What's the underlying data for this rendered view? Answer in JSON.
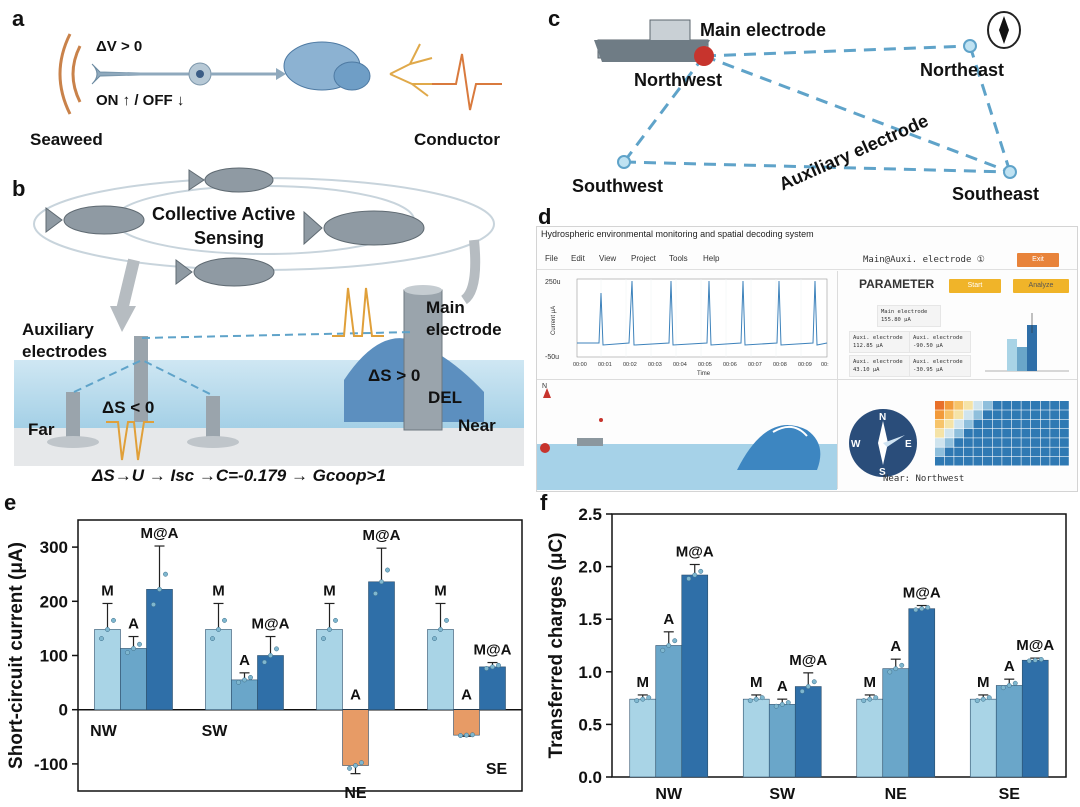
{
  "panels": {
    "a": {
      "letter": "a",
      "dv": "ΔV > 0",
      "onoff": "ON ↑ / OFF ↓",
      "left_label": "Seaweed",
      "right_label": "Conductor"
    },
    "b": {
      "letter": "b",
      "title1": "Collective Active",
      "title2": "Sensing",
      "aux1": "Auxiliary",
      "aux2": "electrodes",
      "main1": "Main",
      "main2": "electrode",
      "ds_pos": "ΔS > 0",
      "ds_neg": "ΔS < 0",
      "del": "DEL",
      "far": "Far",
      "near": "Near",
      "equation": "ΔS→U → Isc →C=-0.179 → Gcoop>1"
    },
    "c": {
      "letter": "c",
      "main": "Main electrode",
      "nw": "Northwest",
      "ne": "Northeast",
      "sw": "Southwest",
      "se": "Southeast",
      "aux": "Auxiliary electrode"
    },
    "d": {
      "letter": "d",
      "app_title": "Hydrospheric environmental monitoring and spatial decoding system",
      "menu": [
        "File",
        "Edit",
        "View",
        "Project",
        "Tools",
        "Help"
      ],
      "elec_title": "Main@Auxi. electrode ①",
      "exit": "Exit",
      "param": "PARAMETER",
      "start": "Start",
      "analyze": "Analyze",
      "y_top": "250u",
      "y_bottom": "-50u",
      "y_label": "Current μA",
      "x_label": "Time",
      "x_ticks": [
        "00:00",
        "00:01",
        "00:02",
        "00:03",
        "00:04",
        "00:05",
        "00:06",
        "00:07",
        "00:08",
        "00:09",
        "00:"
      ],
      "main_name": "Main electrode",
      "main_val": "155.80 μA",
      "aux_name": "Auxi. electrode",
      "aux_vals": [
        "112.85 μA",
        "-90.50 μA",
        "43.10 μA",
        "-30.95 μA"
      ],
      "compass": {
        "n": "N",
        "e": "E",
        "s": "S",
        "w": "W"
      },
      "north_mark": "N",
      "near": "Near: Northwest",
      "colors": {
        "exit": "#e8833a",
        "start": "#f0b429",
        "accent": "#2f79b3"
      }
    },
    "e": {
      "letter": "e"
    },
    "f": {
      "letter": "f"
    }
  },
  "chart_data": [
    {
      "type": "bar",
      "panel": "e",
      "ylabel": "Short-circuit current (μA)",
      "categories": [
        "NW",
        "SW",
        "NE",
        "SE"
      ],
      "yticks": [
        -100,
        0,
        100,
        200,
        300
      ],
      "ylim": [
        -150,
        350
      ],
      "series": [
        {
          "name": "M",
          "color": "#a9d4e6",
          "values": [
            148,
            148,
            148,
            148
          ],
          "errors": [
            48,
            48,
            48,
            48
          ],
          "labels": [
            "M",
            "M",
            "M",
            "M"
          ]
        },
        {
          "name": "A",
          "color": "#6aa6c9",
          "values": [
            113,
            55,
            -103,
            -47
          ],
          "errors": [
            22,
            13,
            15,
            2
          ],
          "labels": [
            "A",
            "A",
            "A",
            "A"
          ],
          "neg_color": "#e79b66"
        },
        {
          "name": "M@A",
          "color": "#2f6fa8",
          "values": [
            222,
            100,
            236,
            79
          ],
          "errors": [
            80,
            35,
            62,
            8
          ],
          "labels": [
            "M@A",
            "M@A",
            "M@A",
            "M@A"
          ],
          "neg_color": "#e07b3f"
        }
      ],
      "neg_values_secondary": [
        0,
        0,
        -112,
        -47
      ]
    },
    {
      "type": "bar",
      "panel": "f",
      "ylabel": "Transferred charges (μC)",
      "categories": [
        "NW",
        "SW",
        "NE",
        "SE"
      ],
      "yticks": [
        0.0,
        0.5,
        1.0,
        1.5,
        2.0,
        2.5
      ],
      "ylim": [
        0,
        2.5
      ],
      "series": [
        {
          "name": "M",
          "color": "#a9d4e6",
          "values": [
            0.74,
            0.74,
            0.74,
            0.74
          ],
          "errors": [
            0.04,
            0.04,
            0.04,
            0.04
          ],
          "labels": [
            "M",
            "M",
            "M",
            "M"
          ]
        },
        {
          "name": "A",
          "color": "#6aa6c9",
          "values": [
            1.25,
            0.69,
            1.03,
            0.87
          ],
          "errors": [
            0.13,
            0.05,
            0.09,
            0.06
          ],
          "labels": [
            "A",
            "A",
            "A",
            "A"
          ]
        },
        {
          "name": "M@A",
          "color": "#2f6fa8",
          "values": [
            1.92,
            0.86,
            1.6,
            1.11
          ],
          "errors": [
            0.1,
            0.13,
            0.03,
            0.02
          ],
          "labels": [
            "M@A",
            "M@A",
            "M@A",
            "M@A"
          ]
        }
      ]
    }
  ]
}
